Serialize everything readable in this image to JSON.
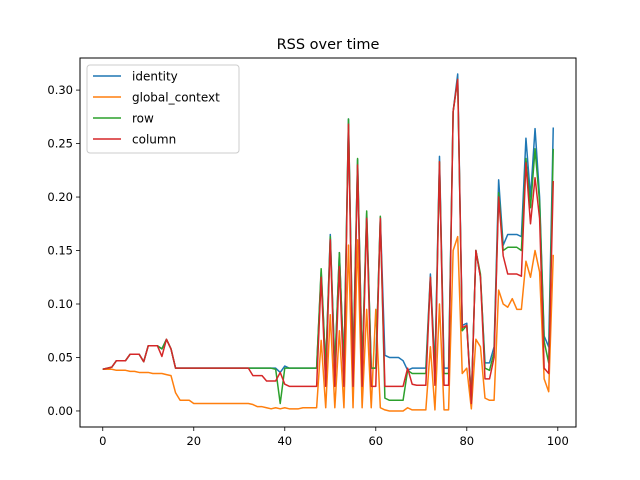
{
  "chart_data": {
    "type": "line",
    "title": "RSS over time",
    "xlabel": "",
    "ylabel": "",
    "xlim": [
      -5,
      104
    ],
    "ylim": [
      -0.015,
      0.33
    ],
    "xticks": [
      0,
      20,
      40,
      60,
      80,
      100
    ],
    "yticks": [
      0.0,
      0.05,
      0.1,
      0.15,
      0.2,
      0.25,
      0.3
    ],
    "grid": false,
    "legend_position": "top-left",
    "x": [
      0,
      1,
      2,
      3,
      4,
      5,
      6,
      7,
      8,
      9,
      10,
      11,
      12,
      13,
      14,
      15,
      16,
      17,
      18,
      19,
      20,
      21,
      22,
      23,
      24,
      25,
      26,
      27,
      28,
      29,
      30,
      31,
      32,
      33,
      34,
      35,
      36,
      37,
      38,
      39,
      40,
      41,
      42,
      43,
      44,
      45,
      46,
      47,
      48,
      49,
      50,
      51,
      52,
      53,
      54,
      55,
      56,
      57,
      58,
      59,
      60,
      61,
      62,
      63,
      64,
      65,
      66,
      67,
      68,
      69,
      70,
      71,
      72,
      73,
      74,
      75,
      76,
      77,
      78,
      79,
      80,
      81,
      82,
      83,
      84,
      85,
      86,
      87,
      88,
      89,
      90,
      91,
      92,
      93,
      94,
      95,
      96,
      97,
      98,
      99
    ],
    "series": [
      {
        "name": "identity",
        "color": "#1f77b4",
        "values": [
          0.039,
          0.04,
          0.041,
          0.047,
          0.047,
          0.047,
          0.053,
          0.053,
          0.053,
          0.046,
          0.061,
          0.061,
          0.061,
          0.058,
          0.067,
          0.058,
          0.04,
          0.04,
          0.04,
          0.04,
          0.04,
          0.04,
          0.04,
          0.04,
          0.04,
          0.04,
          0.04,
          0.04,
          0.04,
          0.04,
          0.04,
          0.04,
          0.04,
          0.04,
          0.04,
          0.04,
          0.04,
          0.04,
          0.04,
          0.036,
          0.042,
          0.04,
          0.04,
          0.04,
          0.04,
          0.04,
          0.04,
          0.04,
          0.13,
          0.04,
          0.165,
          0.04,
          0.148,
          0.04,
          0.273,
          0.04,
          0.235,
          0.04,
          0.185,
          0.04,
          0.04,
          0.181,
          0.052,
          0.05,
          0.05,
          0.05,
          0.047,
          0.038,
          0.04,
          0.04,
          0.04,
          0.04,
          0.128,
          0.04,
          0.238,
          0.04,
          0.04,
          0.28,
          0.315,
          0.08,
          0.082,
          0.01,
          0.15,
          0.125,
          0.045,
          0.045,
          0.06,
          0.216,
          0.155,
          0.165,
          0.165,
          0.165,
          0.163,
          0.255,
          0.2,
          0.264,
          0.2,
          0.07,
          0.06,
          0.265
        ]
      },
      {
        "name": "global_context",
        "color": "#ff7f0e",
        "values": [
          0.039,
          0.039,
          0.039,
          0.038,
          0.038,
          0.038,
          0.037,
          0.037,
          0.036,
          0.036,
          0.036,
          0.035,
          0.035,
          0.035,
          0.034,
          0.033,
          0.017,
          0.01,
          0.01,
          0.01,
          0.007,
          0.007,
          0.007,
          0.007,
          0.007,
          0.007,
          0.007,
          0.007,
          0.007,
          0.007,
          0.007,
          0.007,
          0.007,
          0.006,
          0.004,
          0.004,
          0.003,
          0.002,
          0.003,
          0.002,
          0.003,
          0.002,
          0.002,
          0.002,
          0.003,
          0.003,
          0.003,
          0.003,
          0.066,
          0.003,
          0.09,
          0.003,
          0.075,
          0.003,
          0.155,
          0.003,
          0.16,
          0.003,
          0.095,
          0.003,
          0.095,
          0.003,
          0.001,
          0.0,
          0.0,
          0.0,
          0.0,
          0.003,
          0.001,
          0.001,
          0.001,
          0.001,
          0.06,
          0.001,
          0.1,
          0.001,
          0.001,
          0.15,
          0.163,
          0.035,
          0.04,
          0.002,
          0.067,
          0.06,
          0.012,
          0.01,
          0.01,
          0.113,
          0.1,
          0.097,
          0.105,
          0.095,
          0.095,
          0.14,
          0.125,
          0.15,
          0.13,
          0.03,
          0.018,
          0.146
        ]
      },
      {
        "name": "row",
        "color": "#2ca02c",
        "values": [
          0.039,
          0.04,
          0.041,
          0.047,
          0.047,
          0.047,
          0.053,
          0.053,
          0.053,
          0.046,
          0.061,
          0.061,
          0.061,
          0.058,
          0.067,
          0.058,
          0.04,
          0.04,
          0.04,
          0.04,
          0.04,
          0.04,
          0.04,
          0.04,
          0.04,
          0.04,
          0.04,
          0.04,
          0.04,
          0.04,
          0.04,
          0.04,
          0.04,
          0.04,
          0.04,
          0.04,
          0.04,
          0.04,
          0.039,
          0.007,
          0.04,
          0.04,
          0.04,
          0.04,
          0.04,
          0.04,
          0.04,
          0.04,
          0.133,
          0.04,
          0.163,
          0.04,
          0.148,
          0.04,
          0.273,
          0.04,
          0.236,
          0.04,
          0.187,
          0.04,
          0.04,
          0.182,
          0.012,
          0.01,
          0.01,
          0.01,
          0.01,
          0.038,
          0.035,
          0.035,
          0.035,
          0.035,
          0.125,
          0.035,
          0.233,
          0.035,
          0.035,
          0.28,
          0.31,
          0.075,
          0.08,
          0.01,
          0.15,
          0.128,
          0.04,
          0.038,
          0.055,
          0.204,
          0.15,
          0.153,
          0.153,
          0.153,
          0.15,
          0.236,
          0.19,
          0.245,
          0.195,
          0.065,
          0.045,
          0.245
        ]
      },
      {
        "name": "column",
        "color": "#d62728",
        "values": [
          0.039,
          0.04,
          0.041,
          0.047,
          0.047,
          0.047,
          0.053,
          0.053,
          0.053,
          0.046,
          0.061,
          0.061,
          0.061,
          0.051,
          0.067,
          0.058,
          0.04,
          0.04,
          0.04,
          0.04,
          0.04,
          0.04,
          0.04,
          0.04,
          0.04,
          0.04,
          0.04,
          0.04,
          0.04,
          0.04,
          0.04,
          0.04,
          0.04,
          0.033,
          0.033,
          0.033,
          0.028,
          0.028,
          0.028,
          0.036,
          0.025,
          0.023,
          0.023,
          0.023,
          0.023,
          0.023,
          0.023,
          0.023,
          0.125,
          0.023,
          0.16,
          0.023,
          0.135,
          0.023,
          0.268,
          0.023,
          0.23,
          0.023,
          0.18,
          0.023,
          0.023,
          0.18,
          0.023,
          0.023,
          0.023,
          0.023,
          0.023,
          0.04,
          0.025,
          0.024,
          0.024,
          0.024,
          0.125,
          0.024,
          0.233,
          0.024,
          0.024,
          0.28,
          0.31,
          0.078,
          0.08,
          0.007,
          0.15,
          0.125,
          0.03,
          0.03,
          0.05,
          0.2,
          0.145,
          0.128,
          0.128,
          0.128,
          0.126,
          0.232,
          0.175,
          0.218,
          0.18,
          0.04,
          0.035,
          0.215
        ]
      }
    ]
  }
}
